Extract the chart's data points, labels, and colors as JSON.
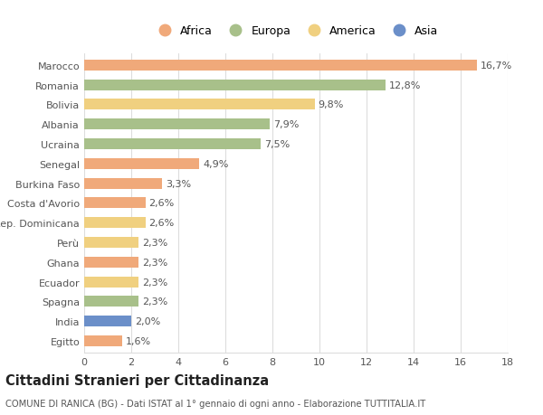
{
  "countries": [
    "Marocco",
    "Romania",
    "Bolivia",
    "Albania",
    "Ucraina",
    "Senegal",
    "Burkina Faso",
    "Costa d'Avorio",
    "Rep. Dominicana",
    "Perù",
    "Ghana",
    "Ecuador",
    "Spagna",
    "India",
    "Egitto"
  ],
  "values": [
    16.7,
    12.8,
    9.8,
    7.9,
    7.5,
    4.9,
    3.3,
    2.6,
    2.6,
    2.3,
    2.3,
    2.3,
    2.3,
    2.0,
    1.6
  ],
  "labels": [
    "16,7%",
    "12,8%",
    "9,8%",
    "7,9%",
    "7,5%",
    "4,9%",
    "3,3%",
    "2,6%",
    "2,6%",
    "2,3%",
    "2,3%",
    "2,3%",
    "2,3%",
    "2,0%",
    "1,6%"
  ],
  "continents": [
    "Africa",
    "Europa",
    "America",
    "Europa",
    "Europa",
    "Africa",
    "Africa",
    "Africa",
    "America",
    "America",
    "Africa",
    "America",
    "Europa",
    "Asia",
    "Africa"
  ],
  "continent_colors": {
    "Africa": "#F0A97A",
    "Europa": "#A8C08A",
    "America": "#F0D080",
    "Asia": "#6B8FC9"
  },
  "legend_order": [
    "Africa",
    "Europa",
    "America",
    "Asia"
  ],
  "xlim": [
    0,
    18
  ],
  "xticks": [
    0,
    2,
    4,
    6,
    8,
    10,
    12,
    14,
    16,
    18
  ],
  "title": "Cittadini Stranieri per Cittadinanza",
  "subtitle": "COMUNE DI RANICA (BG) - Dati ISTAT al 1° gennaio di ogni anno - Elaborazione TUTTITALIA.IT",
  "background_color": "#ffffff",
  "grid_color": "#dddddd",
  "bar_height": 0.55,
  "label_fontsize": 8,
  "tick_fontsize": 8,
  "title_fontsize": 10.5,
  "subtitle_fontsize": 7.2
}
